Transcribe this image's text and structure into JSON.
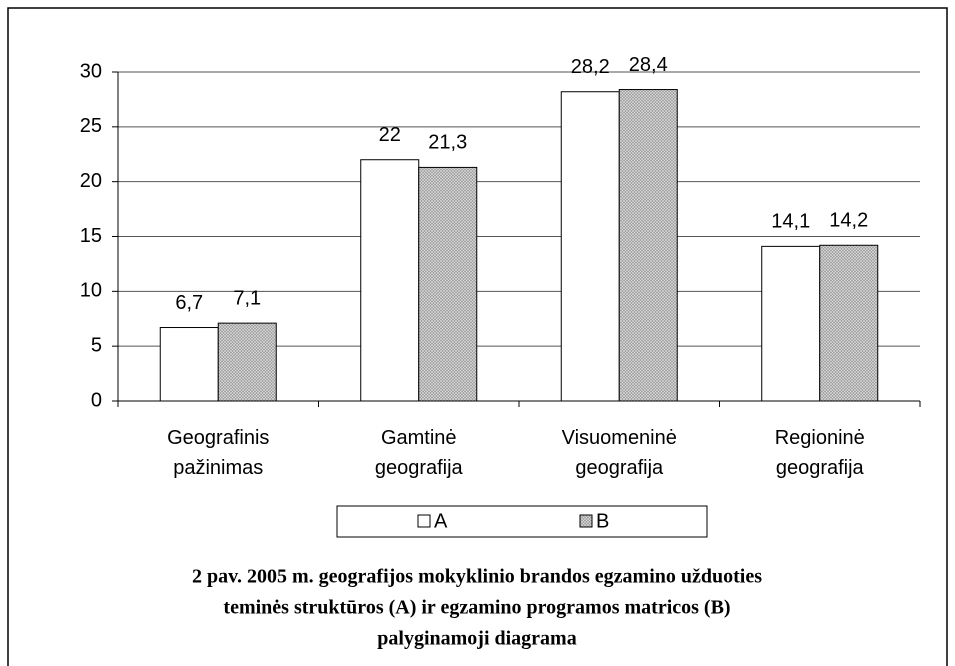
{
  "chart_data": {
    "type": "bar",
    "categories": [
      "Geografinis\npažinimas",
      "Gamtinė\ngeografija",
      "Visuomeninė\ngeografija",
      "Regioninė\ngeografija"
    ],
    "series": [
      {
        "name": "A",
        "color": "#ffffff",
        "values": [
          6.7,
          22,
          28.2,
          14.1
        ],
        "value_labels": [
          "6,7",
          "22",
          "28,2",
          "14,1"
        ]
      },
      {
        "name": "B",
        "color": "#9a9a9a",
        "values": [
          7.1,
          21.3,
          28.4,
          14.2
        ],
        "value_labels": [
          "7,1",
          "21,3",
          "28,4",
          "14,2"
        ]
      }
    ],
    "ylim": [
      0,
      30
    ],
    "yticks": [
      0,
      5,
      10,
      15,
      20,
      25,
      30
    ],
    "grid": true,
    "legend": "bottom",
    "caption": [
      "2 pav. 2005 m. geografijos mokyklinio brandos egzamino užduoties",
      "teminės struktūros (A) ir egzamino programos matricos (B)",
      "palyginamoji diagrama"
    ]
  }
}
